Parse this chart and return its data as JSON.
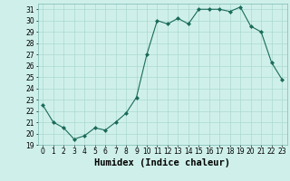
{
  "x": [
    0,
    1,
    2,
    3,
    4,
    5,
    6,
    7,
    8,
    9,
    10,
    11,
    12,
    13,
    14,
    15,
    16,
    17,
    18,
    19,
    20,
    21,
    22,
    23
  ],
  "y": [
    22.5,
    21.0,
    20.5,
    19.5,
    19.8,
    20.5,
    20.3,
    21.0,
    21.8,
    23.2,
    27.0,
    30.0,
    29.7,
    30.2,
    29.7,
    31.0,
    31.0,
    31.0,
    30.8,
    31.2,
    29.5,
    29.0,
    26.3,
    24.8
  ],
  "line_color": "#1a6b5a",
  "marker": "D",
  "marker_size": 2.0,
  "bg_color": "#cff0ea",
  "grid_color": "#aad9d1",
  "xlabel": "Humidex (Indice chaleur)",
  "xlim": [
    -0.5,
    23.5
  ],
  "ylim": [
    19,
    31.5
  ],
  "yticks": [
    19,
    20,
    21,
    22,
    23,
    24,
    25,
    26,
    27,
    28,
    29,
    30,
    31
  ],
  "xticks": [
    0,
    1,
    2,
    3,
    4,
    5,
    6,
    7,
    8,
    9,
    10,
    11,
    12,
    13,
    14,
    15,
    16,
    17,
    18,
    19,
    20,
    21,
    22,
    23
  ],
  "tick_fontsize": 5.5,
  "xlabel_fontsize": 7.5
}
